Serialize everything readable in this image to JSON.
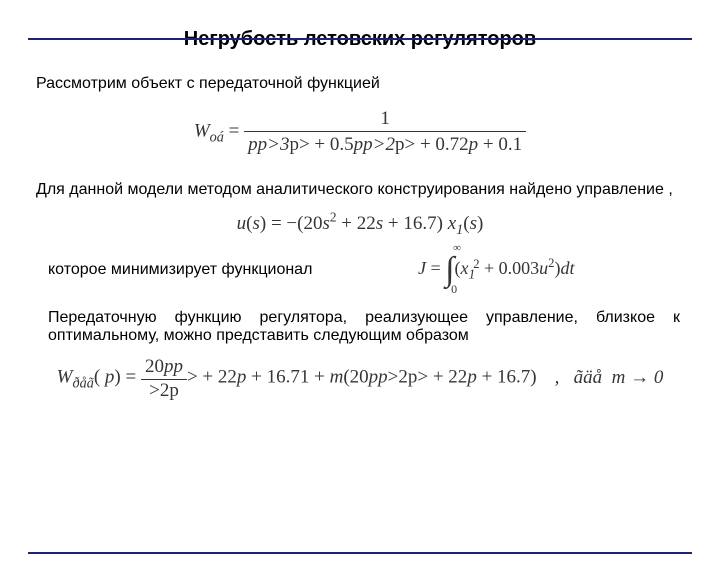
{
  "rule_color": "#1a237e",
  "title": {
    "text": "Негрубость летовских регуляторов",
    "fontsize": 20
  },
  "para1": {
    "text": "Рассмотрим объект с передаточной функцией",
    "fontsize": 16
  },
  "eq1": {
    "lhs_sym": "W",
    "lhs_sub": "oá",
    "num": "1",
    "den_html": "p<sup>3</sup> + 0.5p<sup>2</sup> + 0.72p + 0.1",
    "fontsize": 19
  },
  "para2": {
    "text": "Для данной модели  методом аналитического конструирования найдено управление ,",
    "fontsize": 16
  },
  "eq2": {
    "html": "u(s) = −(20s<sup>2</sup> + 22s + 16.7) x<sub>1</sub>(s)",
    "fontsize": 19
  },
  "row": {
    "left_text": "которое минимизирует функционал",
    "left_fontsize": 16,
    "eq_lhs": "J =",
    "int_upper": "∞",
    "int_lower": "0",
    "eq_body_html": "(x<sub>1</sub><sup>2</sup> + 0.003u<sup>2</sup>) dt",
    "fontsize": 18
  },
  "para3": {
    "text": "Передаточную функцию регулятора, реализующее управление, близкое к оптимальному, можно представить следующим образом",
    "fontsize": 16
  },
  "eq3": {
    "lhs_sym": "W",
    "lhs_sub": "ðåã",
    "lhs_arg": "( p) =",
    "num_html": "20p<sup>2</sup> + 22p + 16.7",
    "den_html": "1 + m(20p<sup>2</sup> + 22p + 16.7)",
    "trail": ",   ãäå  m → 0",
    "fontsize": 19
  }
}
